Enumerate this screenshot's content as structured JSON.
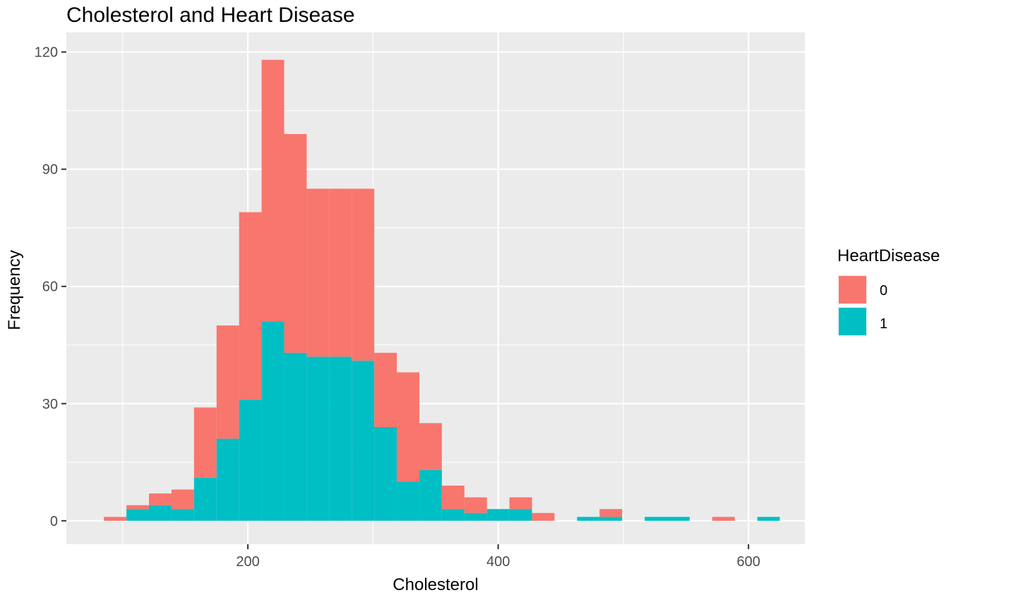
{
  "chart_data": {
    "type": "bar",
    "subtype": "stacked-histogram",
    "title": "Cholesterol and Heart Disease",
    "xlabel": "Cholesterol",
    "ylabel": "Frequency",
    "xlim": [
      55,
      645
    ],
    "ylim": [
      -6,
      125
    ],
    "x_ticks": [
      200,
      400,
      600
    ],
    "y_ticks": [
      0,
      30,
      60,
      90,
      120
    ],
    "grid": true,
    "legend": {
      "title": "HeartDisease",
      "position": "right",
      "entries": [
        {
          "label": "0",
          "color": "#F8766D"
        },
        {
          "label": "1",
          "color": "#00BFC4"
        }
      ]
    },
    "bins": [
      [
        85,
        103
      ],
      [
        103,
        121
      ],
      [
        121,
        139
      ],
      [
        139,
        157
      ],
      [
        157,
        175
      ],
      [
        175,
        193
      ],
      [
        193,
        211
      ],
      [
        211,
        229
      ],
      [
        229,
        247
      ],
      [
        247,
        265
      ],
      [
        265,
        283
      ],
      [
        283,
        301
      ],
      [
        301,
        319
      ],
      [
        319,
        337
      ],
      [
        337,
        355
      ],
      [
        355,
        373
      ],
      [
        373,
        391
      ],
      [
        391,
        409
      ],
      [
        409,
        427
      ],
      [
        427,
        445
      ],
      [
        445,
        463
      ],
      [
        463,
        481
      ],
      [
        481,
        499
      ],
      [
        499,
        517
      ],
      [
        517,
        535
      ],
      [
        535,
        553
      ],
      [
        553,
        571
      ],
      [
        571,
        589
      ],
      [
        589,
        607
      ],
      [
        607,
        625
      ]
    ],
    "series": [
      {
        "name": "0",
        "color": "#F8766D",
        "values": [
          1,
          1,
          3,
          5,
          18,
          29,
          48,
          67,
          56,
          43,
          43,
          44,
          19,
          28,
          12,
          6,
          4,
          0,
          3,
          2,
          0,
          0,
          2,
          0,
          0,
          0,
          0,
          1,
          0,
          0
        ]
      },
      {
        "name": "1",
        "color": "#00BFC4",
        "values": [
          0,
          3,
          4,
          3,
          11,
          21,
          31,
          51,
          43,
          42,
          42,
          41,
          24,
          10,
          13,
          3,
          2,
          3,
          3,
          0,
          0,
          1,
          1,
          0,
          1,
          1,
          0,
          0,
          0,
          1
        ]
      }
    ]
  }
}
